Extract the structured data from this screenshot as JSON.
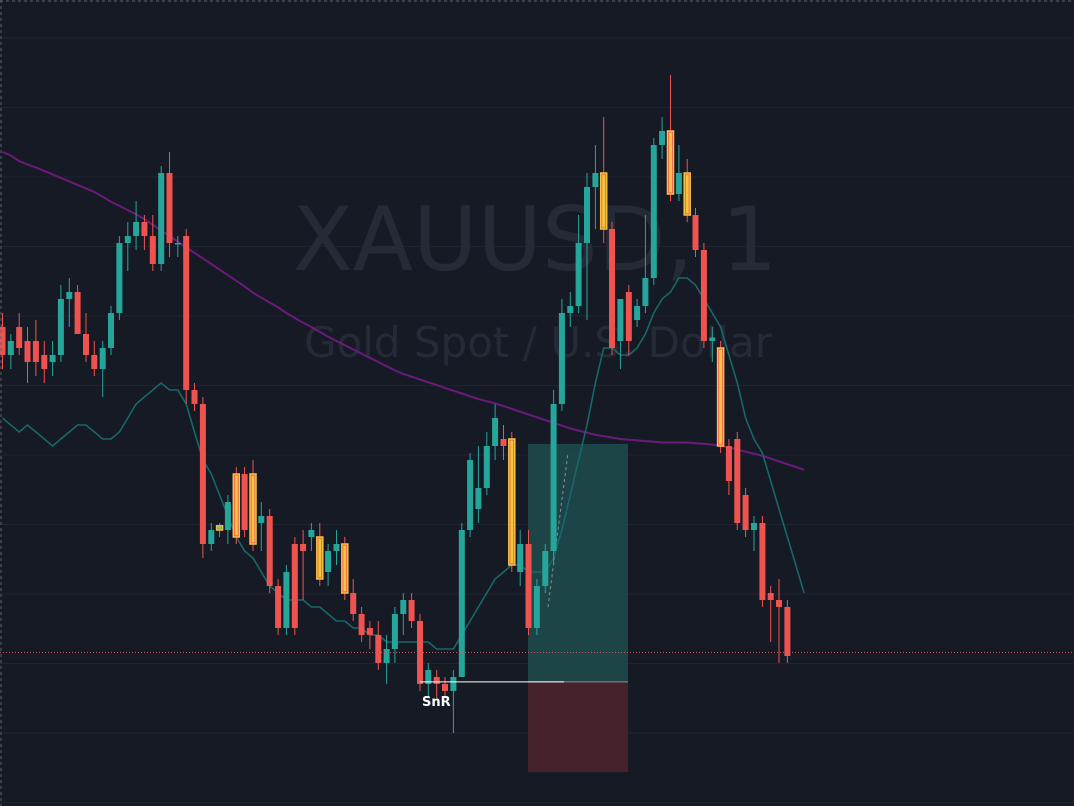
{
  "watermark": {
    "symbol": "XAUUSD, 1",
    "description": "Gold Spot / U.S. Dollar"
  },
  "annotation": {
    "snr_label": "SnR"
  },
  "colors": {
    "background": "#161a25",
    "grid": "#1f2431",
    "bull": "#26a69a",
    "bear": "#ef5350",
    "highlight_body": "#f6c343",
    "highlight_border": "#f6c343",
    "ma_fast": "#16686a",
    "ma_slow": "#6a1b7a",
    "current_price_line": "#c2585a",
    "position_profit": "#1f4e4e",
    "position_loss": "#4a232d",
    "snr_line": "#ffffff"
  },
  "chart_data": {
    "type": "candlestick",
    "symbol": "XAUUSD",
    "timeframe": "1",
    "ylim": [
      0,
      100
    ],
    "grid": true,
    "candles": [
      {
        "o": 64,
        "h": 66,
        "l": 58,
        "c": 60,
        "hl": false
      },
      {
        "o": 60,
        "h": 63,
        "l": 58,
        "c": 62,
        "hl": false
      },
      {
        "o": 64,
        "h": 66,
        "l": 60,
        "c": 61,
        "hl": false
      },
      {
        "o": 62,
        "h": 64,
        "l": 56,
        "c": 59,
        "hl": false
      },
      {
        "o": 62,
        "h": 65,
        "l": 57,
        "c": 59,
        "hl": false
      },
      {
        "o": 60,
        "h": 62,
        "l": 56,
        "c": 58,
        "hl": false
      },
      {
        "o": 59,
        "h": 62,
        "l": 57,
        "c": 60,
        "hl": false
      },
      {
        "o": 60,
        "h": 70,
        "l": 59,
        "c": 68,
        "hl": false
      },
      {
        "o": 68,
        "h": 71,
        "l": 64,
        "c": 69,
        "hl": false
      },
      {
        "o": 69,
        "h": 70,
        "l": 63,
        "c": 63,
        "hl": false
      },
      {
        "o": 63,
        "h": 66,
        "l": 59,
        "c": 60,
        "hl": false
      },
      {
        "o": 60,
        "h": 62,
        "l": 57,
        "c": 58,
        "hl": false
      },
      {
        "o": 58,
        "h": 62,
        "l": 54,
        "c": 61,
        "hl": false
      },
      {
        "o": 61,
        "h": 67,
        "l": 60,
        "c": 66,
        "hl": false
      },
      {
        "o": 66,
        "h": 77,
        "l": 65,
        "c": 76,
        "hl": false
      },
      {
        "o": 76,
        "h": 79,
        "l": 72,
        "c": 77,
        "hl": false
      },
      {
        "o": 77,
        "h": 82,
        "l": 75,
        "c": 79,
        "hl": false
      },
      {
        "o": 79,
        "h": 80,
        "l": 75,
        "c": 77,
        "hl": false
      },
      {
        "o": 77,
        "h": 80,
        "l": 72,
        "c": 73,
        "hl": false
      },
      {
        "o": 73,
        "h": 87,
        "l": 72,
        "c": 86,
        "hl": false
      },
      {
        "o": 86,
        "h": 89,
        "l": 74,
        "c": 76,
        "hl": false
      },
      {
        "o": 76,
        "h": 77,
        "l": 74,
        "c": 76,
        "hl": false
      },
      {
        "o": 77,
        "h": 78,
        "l": 53,
        "c": 55,
        "hl": false
      },
      {
        "o": 55,
        "h": 56,
        "l": 52,
        "c": 53,
        "hl": false
      },
      {
        "o": 53,
        "h": 54,
        "l": 31,
        "c": 33,
        "hl": false
      },
      {
        "o": 33,
        "h": 36,
        "l": 32,
        "c": 35,
        "hl": false
      },
      {
        "o": 35,
        "h": 36,
        "l": 34,
        "c": 35.6,
        "hl": true
      },
      {
        "o": 35,
        "h": 40,
        "l": 33,
        "c": 39,
        "hl": false
      },
      {
        "o": 43,
        "h": 44,
        "l": 33,
        "c": 34,
        "hl": true
      },
      {
        "o": 43,
        "h": 44,
        "l": 34,
        "c": 35,
        "hl": false
      },
      {
        "o": 43,
        "h": 45,
        "l": 32,
        "c": 33,
        "hl": true
      },
      {
        "o": 36,
        "h": 39,
        "l": 32,
        "c": 37,
        "hl": false
      },
      {
        "o": 37,
        "h": 38,
        "l": 26,
        "c": 27,
        "hl": false
      },
      {
        "o": 27,
        "h": 28,
        "l": 20,
        "c": 21,
        "hl": false
      },
      {
        "o": 21,
        "h": 30,
        "l": 20,
        "c": 29,
        "hl": false
      },
      {
        "o": 33,
        "h": 34,
        "l": 20,
        "c": 21,
        "hl": false
      },
      {
        "o": 33,
        "h": 35,
        "l": 25,
        "c": 32,
        "hl": false
      },
      {
        "o": 34,
        "h": 36,
        "l": 32,
        "c": 35,
        "hl": false
      },
      {
        "o": 34,
        "h": 36,
        "l": 27,
        "c": 28,
        "hl": true
      },
      {
        "o": 29,
        "h": 33,
        "l": 27,
        "c": 32,
        "hl": false
      },
      {
        "o": 32,
        "h": 35,
        "l": 30,
        "c": 33,
        "hl": false
      },
      {
        "o": 33,
        "h": 34,
        "l": 25,
        "c": 26,
        "hl": true
      },
      {
        "o": 26,
        "h": 28,
        "l": 22,
        "c": 23,
        "hl": false
      },
      {
        "o": 23,
        "h": 24,
        "l": 19,
        "c": 20,
        "hl": false
      },
      {
        "o": 21,
        "h": 22,
        "l": 18,
        "c": 20,
        "hl": false
      },
      {
        "o": 20,
        "h": 22,
        "l": 15,
        "c": 16,
        "hl": false
      },
      {
        "o": 16,
        "h": 20,
        "l": 13,
        "c": 18,
        "hl": false
      },
      {
        "o": 18,
        "h": 24,
        "l": 16,
        "c": 23,
        "hl": false
      },
      {
        "o": 23,
        "h": 26,
        "l": 20,
        "c": 25,
        "hl": false
      },
      {
        "o": 25,
        "h": 26,
        "l": 21,
        "c": 22,
        "hl": false
      },
      {
        "o": 22,
        "h": 23,
        "l": 12,
        "c": 13,
        "hl": false
      },
      {
        "o": 13,
        "h": 16,
        "l": 11,
        "c": 15,
        "hl": false
      },
      {
        "o": 14,
        "h": 15,
        "l": 11,
        "c": 13,
        "hl": false
      },
      {
        "o": 13,
        "h": 14,
        "l": 11,
        "c": 12,
        "hl": false
      },
      {
        "o": 12,
        "h": 15,
        "l": 6,
        "c": 14,
        "hl": false
      },
      {
        "o": 14,
        "h": 36,
        "l": 14,
        "c": 35,
        "hl": false
      },
      {
        "o": 35,
        "h": 46,
        "l": 34,
        "c": 45,
        "hl": false
      },
      {
        "o": 38,
        "h": 47,
        "l": 36,
        "c": 41,
        "hl": false
      },
      {
        "o": 41,
        "h": 49,
        "l": 40,
        "c": 47,
        "hl": false
      },
      {
        "o": 47,
        "h": 53,
        "l": 45,
        "c": 51,
        "hl": false
      },
      {
        "o": 48,
        "h": 50,
        "l": 45,
        "c": 47,
        "hl": false
      },
      {
        "o": 48,
        "h": 49,
        "l": 29,
        "c": 30,
        "hl": true
      },
      {
        "o": 29,
        "h": 35,
        "l": 27,
        "c": 33,
        "hl": false
      },
      {
        "o": 33,
        "h": 35,
        "l": 20,
        "c": 21,
        "hl": false
      },
      {
        "o": 21,
        "h": 28,
        "l": 20,
        "c": 27,
        "hl": false
      },
      {
        "o": 27,
        "h": 33,
        "l": 26,
        "c": 32,
        "hl": false
      },
      {
        "o": 32,
        "h": 55,
        "l": 30,
        "c": 53,
        "hl": false
      },
      {
        "o": 53,
        "h": 68,
        "l": 52,
        "c": 66,
        "hl": false
      },
      {
        "o": 66,
        "h": 69,
        "l": 64,
        "c": 67,
        "hl": false
      },
      {
        "o": 67,
        "h": 80,
        "l": 66,
        "c": 76,
        "hl": false
      },
      {
        "o": 76,
        "h": 86,
        "l": 65,
        "c": 84,
        "hl": false
      },
      {
        "o": 84,
        "h": 90,
        "l": 78,
        "c": 86,
        "hl": false
      },
      {
        "o": 86,
        "h": 94,
        "l": 76,
        "c": 78,
        "hl": true
      },
      {
        "o": 78,
        "h": 79,
        "l": 60,
        "c": 61,
        "hl": false
      },
      {
        "o": 62,
        "h": 68,
        "l": 58,
        "c": 68,
        "hl": false
      },
      {
        "o": 69,
        "h": 70,
        "l": 60,
        "c": 62,
        "hl": false
      },
      {
        "o": 65,
        "h": 68,
        "l": 64,
        "c": 67,
        "hl": false
      },
      {
        "o": 67,
        "h": 80,
        "l": 66,
        "c": 71,
        "hl": false
      },
      {
        "o": 71,
        "h": 91,
        "l": 70,
        "c": 90,
        "hl": false
      },
      {
        "o": 90,
        "h": 94,
        "l": 88,
        "c": 92,
        "hl": false
      },
      {
        "o": 92,
        "h": 100,
        "l": 82,
        "c": 83,
        "hl": true
      },
      {
        "o": 83,
        "h": 90,
        "l": 82,
        "c": 86,
        "hl": false
      },
      {
        "o": 86,
        "h": 88,
        "l": 79,
        "c": 80,
        "hl": true
      },
      {
        "o": 80,
        "h": 81,
        "l": 74,
        "c": 75,
        "hl": false
      },
      {
        "o": 75,
        "h": 76,
        "l": 61,
        "c": 62,
        "hl": false
      },
      {
        "o": 62,
        "h": 64,
        "l": 59,
        "c": 62.5,
        "hl": false
      },
      {
        "o": 61,
        "h": 62,
        "l": 46,
        "c": 47,
        "hl": true
      },
      {
        "o": 47,
        "h": 48,
        "l": 40,
        "c": 42,
        "hl": false
      },
      {
        "o": 48,
        "h": 49,
        "l": 35,
        "c": 36,
        "hl": false
      },
      {
        "o": 40,
        "h": 41,
        "l": 34,
        "c": 35,
        "hl": false
      },
      {
        "o": 35,
        "h": 37,
        "l": 32,
        "c": 36,
        "hl": false
      },
      {
        "o": 36,
        "h": 37,
        "l": 24,
        "c": 25,
        "hl": false
      },
      {
        "o": 26,
        "h": 27,
        "l": 19,
        "c": 25,
        "hl": false
      },
      {
        "o": 25,
        "h": 28,
        "l": 16,
        "c": 24,
        "hl": false
      },
      {
        "o": 24,
        "h": 25,
        "l": 16,
        "c": 17,
        "hl": false
      }
    ],
    "ma_fast": [
      51,
      50,
      49,
      50,
      49,
      48,
      47,
      48,
      49,
      50,
      50,
      49,
      48,
      48,
      49,
      51,
      53,
      54,
      55,
      56,
      55,
      55,
      53,
      49,
      45,
      43,
      40,
      37,
      34,
      32,
      31,
      29,
      27,
      26,
      25,
      25,
      25,
      24,
      24,
      23,
      22,
      22,
      21,
      21,
      20,
      20,
      19,
      19,
      19,
      19,
      19,
      19,
      18,
      18,
      18,
      20,
      22,
      24,
      26,
      28,
      29,
      30,
      30,
      29,
      29,
      29,
      31,
      35,
      40,
      45,
      50,
      56,
      61,
      61,
      60,
      60,
      61,
      63,
      66,
      68,
      69,
      71,
      71,
      70,
      68,
      66,
      64,
      60,
      56,
      51,
      48,
      46,
      42,
      38,
      34,
      30,
      26
    ],
    "ma_slow": [
      89,
      88.5,
      87.7,
      87.2,
      86.8,
      86.3,
      85.8,
      85.3,
      84.8,
      84.3,
      83.8,
      83.3,
      82.6,
      81.9,
      81.3,
      80.7,
      80.1,
      79.4,
      78.6,
      77.8,
      77.0,
      76.2,
      75.4,
      74.6,
      73.8,
      73.0,
      72.2,
      71.4,
      70.6,
      69.8,
      68.9,
      68.2,
      67.5,
      66.8,
      66.0,
      65.3,
      64.6,
      64.0,
      63.3,
      62.6,
      62.0,
      61.4,
      60.8,
      60.2,
      59.6,
      59.0,
      58.4,
      57.8,
      57.3,
      56.9,
      56.5,
      56.1,
      55.7,
      55.3,
      54.9,
      54.5,
      54.1,
      53.7,
      53.4,
      53.1,
      52.7,
      52.3,
      51.9,
      51.5,
      51.1,
      50.7,
      50.3,
      49.9,
      49.5,
      49.2,
      48.9,
      48.6,
      48.4,
      48.2,
      48.0,
      47.9,
      47.8,
      47.7,
      47.6,
      47.5,
      47.5,
      47.5,
      47.5,
      47.4,
      47.3,
      47.2,
      47.0,
      46.8,
      46.5,
      46.2,
      45.9,
      45.6,
      45.2,
      44.8,
      44.4,
      44.0,
      43.6
    ],
    "current_price": 17.5,
    "position": {
      "side": "long",
      "entry": 13.3,
      "stop": 0.4,
      "target": 47.3
    },
    "snr_level": 13.3
  }
}
